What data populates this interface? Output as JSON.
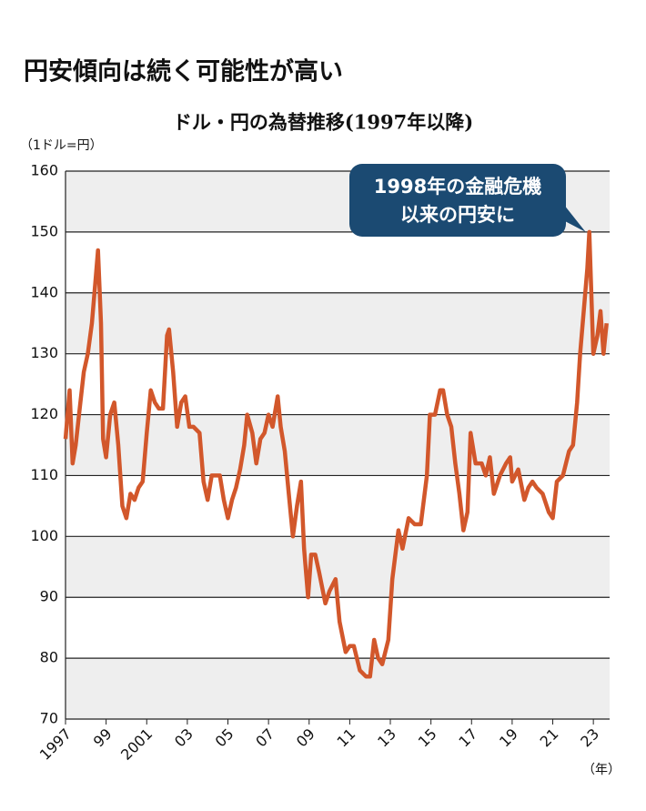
{
  "chart_data": {
    "type": "line",
    "title": "円安傾向は続く可能性が高い",
    "subtitle": "ドル・円の為替推移(1997年以降)",
    "y_label": "（1ドル=円）",
    "x_label": "（年）",
    "annotation": [
      "1998年の金融危機",
      "以来の円安に"
    ],
    "annotation_at": [
      2022.8,
      150
    ],
    "annotation_color": "#1b4a72",
    "band_color": "#eeeeee",
    "grid": true,
    "xlim": [
      1997,
      2023.8
    ],
    "xticks": [
      1997,
      {
        "value": 1999,
        "label": "99"
      },
      2001,
      {
        "value": 2003,
        "label": "03"
      },
      {
        "value": 2005,
        "label": "05"
      },
      {
        "value": 2007,
        "label": "07"
      },
      {
        "value": 2009,
        "label": "09"
      },
      {
        "value": 2011,
        "label": "11"
      },
      {
        "value": 2013,
        "label": "13"
      },
      {
        "value": 2015,
        "label": "15"
      },
      {
        "value": 2017,
        "label": "17"
      },
      {
        "value": 2019,
        "label": "19"
      },
      {
        "value": 2021,
        "label": "21"
      },
      {
        "value": 2023,
        "label": "23"
      }
    ],
    "ylim": [
      70,
      160
    ],
    "yticks": [
      70,
      80,
      90,
      100,
      110,
      120,
      130,
      140,
      150,
      160
    ],
    "x": [
      1997.0,
      1997.2,
      1997.35,
      1997.5,
      1997.7,
      1997.9,
      1998.1,
      1998.3,
      1998.5,
      1998.6,
      1998.75,
      1998.85,
      1999.0,
      1999.2,
      1999.4,
      1999.6,
      1999.8,
      2000.0,
      2000.2,
      2000.4,
      2000.6,
      2000.8,
      2001.0,
      2001.2,
      2001.4,
      2001.6,
      2001.8,
      2002.0,
      2002.1,
      2002.3,
      2002.5,
      2002.7,
      2002.9,
      2003.1,
      2003.3,
      2003.6,
      2003.8,
      2004.0,
      2004.2,
      2004.4,
      2004.6,
      2004.8,
      2005.0,
      2005.2,
      2005.4,
      2005.6,
      2005.8,
      2005.95,
      2006.2,
      2006.4,
      2006.6,
      2006.8,
      2007.0,
      2007.2,
      2007.45,
      2007.6,
      2007.8,
      2008.0,
      2008.2,
      2008.4,
      2008.6,
      2008.75,
      2008.95,
      2009.1,
      2009.3,
      2009.5,
      2009.8,
      2010.0,
      2010.3,
      2010.5,
      2010.8,
      2011.0,
      2011.2,
      2011.5,
      2011.8,
      2012.0,
      2012.2,
      2012.4,
      2012.6,
      2012.9,
      2013.1,
      2013.4,
      2013.6,
      2013.9,
      2014.2,
      2014.5,
      2014.8,
      2014.95,
      2015.2,
      2015.45,
      2015.6,
      2015.8,
      2016.0,
      2016.2,
      2016.4,
      2016.6,
      2016.8,
      2016.95,
      2017.2,
      2017.5,
      2017.7,
      2017.9,
      2018.1,
      2018.4,
      2018.7,
      2018.9,
      2019.0,
      2019.3,
      2019.6,
      2019.8,
      2020.0,
      2020.2,
      2020.5,
      2020.8,
      2021.0,
      2021.2,
      2021.5,
      2021.8,
      2022.0,
      2022.2,
      2022.35,
      2022.5,
      2022.7,
      2022.8,
      2022.9,
      2023.0,
      2023.2,
      2023.35,
      2023.5,
      2023.65
    ],
    "series": [
      {
        "name": "ドル・円",
        "color": "#d2572b",
        "values": [
          116,
          124,
          112,
          115,
          121,
          127,
          130,
          135,
          143,
          147,
          135,
          116,
          113,
          120,
          122,
          115,
          105,
          103,
          107,
          106,
          108,
          109,
          117,
          124,
          122,
          121,
          121,
          133,
          134,
          127,
          118,
          122,
          123,
          118,
          118,
          117,
          109,
          106,
          110,
          110,
          110,
          106,
          103,
          106,
          108,
          111,
          115,
          120,
          117,
          112,
          116,
          117,
          120,
          118,
          123,
          118,
          114,
          107,
          100,
          105,
          109,
          98,
          90,
          97,
          97,
          94,
          89,
          91,
          93,
          86,
          81,
          82,
          82,
          78,
          77,
          77,
          83,
          80,
          79,
          83,
          93,
          101,
          98,
          103,
          102,
          102,
          110,
          120,
          120,
          124,
          124,
          120,
          118,
          112,
          107,
          101,
          104,
          117,
          112,
          112,
          110,
          113,
          107,
          110,
          112,
          113,
          109,
          111,
          106,
          108,
          109,
          108,
          107,
          104,
          103,
          109,
          110,
          114,
          115,
          122,
          130,
          136,
          144,
          150,
          140,
          130,
          133,
          137,
          130,
          135
        ]
      }
    ]
  }
}
